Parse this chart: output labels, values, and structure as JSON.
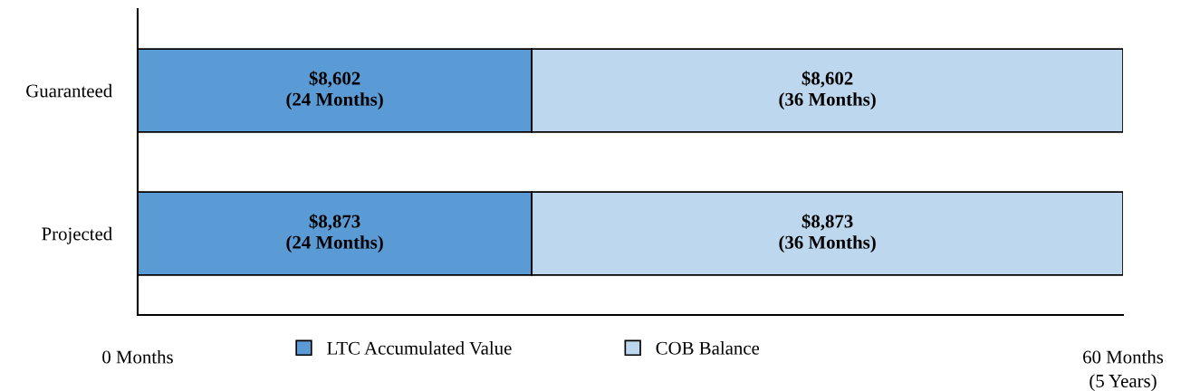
{
  "chart_data": {
    "type": "bar",
    "orientation": "horizontal",
    "stacked": true,
    "categories": [
      "Guaranteed",
      "Projected"
    ],
    "series": [
      {
        "name": "LTC Accumulated Value",
        "color": "#5b9bd5",
        "values": [
          24,
          24
        ],
        "value_labels": [
          "$8,602\n(24 Months)",
          "$8,873\n(24 Months)"
        ]
      },
      {
        "name": "COB Balance",
        "color": "#bdd7ee",
        "values": [
          36,
          36
        ],
        "value_labels": [
          "$8,602\n(36 Months)",
          "$8,873\n(36 Months)"
        ]
      }
    ],
    "xlim": [
      0,
      60
    ],
    "xticks": [
      {
        "value": 0,
        "label": "0 Months"
      },
      {
        "value": 60,
        "label": "60 Months"
      }
    ],
    "annotations": [
      "(5 Years)"
    ],
    "legend": "bottom",
    "grid": false
  }
}
